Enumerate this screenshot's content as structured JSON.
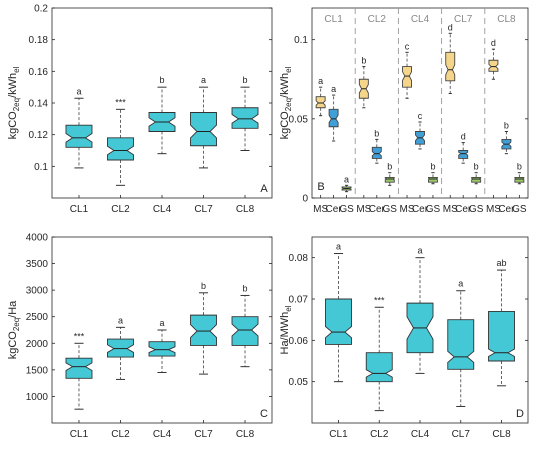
{
  "chart_data": [
    {
      "type": "box",
      "panel_label": "A",
      "ylabel": "kgCO2eq/kWhel",
      "ylabel_parts": {
        "base": "kgCO",
        "sub": "2eq",
        "mid": "/kWh",
        "sub2": "el"
      },
      "ylim": [
        0.08,
        0.2
      ],
      "yticks": [
        0.1,
        0.12,
        0.14,
        0.16,
        0.18,
        0.2
      ],
      "ytick_labels": [
        "0.1",
        "0.12",
        "0.14",
        "0.16",
        "0.18",
        "0.2"
      ],
      "categories": [
        "CL1",
        "CL2",
        "CL4",
        "CL7",
        "CL8"
      ],
      "boxes": [
        {
          "min": 0.099,
          "q1": 0.112,
          "median": 0.118,
          "q3": 0.126,
          "max": 0.143,
          "letter": "a"
        },
        {
          "min": 0.088,
          "q1": 0.104,
          "median": 0.11,
          "q3": 0.118,
          "max": 0.136,
          "letter": "***"
        },
        {
          "min": 0.108,
          "q1": 0.122,
          "median": 0.128,
          "q3": 0.134,
          "max": 0.15,
          "letter": "b"
        },
        {
          "min": 0.099,
          "q1": 0.113,
          "median": 0.122,
          "q3": 0.134,
          "max": 0.15,
          "letter": "a"
        },
        {
          "min": 0.11,
          "q1": 0.124,
          "median": 0.13,
          "q3": 0.137,
          "max": 0.15,
          "letter": "b"
        }
      ]
    },
    {
      "type": "box",
      "panel_label": "B",
      "ylabel": "kgCO2eq/kWhel",
      "ylabel_parts": {
        "base": "kgCO",
        "sub": "2eq",
        "mid": "/kWh",
        "sub2": "el"
      },
      "ylim": [
        0,
        0.12
      ],
      "yticks": [
        0,
        0.05,
        0.1
      ],
      "ytick_labels": [
        "0",
        "0.05",
        "0.1"
      ],
      "groups": [
        "CL1",
        "CL2",
        "CL4",
        "CL7",
        "CL8"
      ],
      "sub_categories": [
        "MS",
        "Cer",
        "GS"
      ],
      "colors": {
        "MS": "#f5d58a",
        "Cer": "#3f9fd6",
        "GS": "#9ccc65"
      },
      "boxes": [
        [
          {
            "min": 0.052,
            "q1": 0.057,
            "median": 0.06,
            "q3": 0.064,
            "max": 0.07,
            "letter": "a"
          },
          {
            "min": 0.036,
            "q1": 0.045,
            "median": 0.05,
            "q3": 0.056,
            "max": 0.065,
            "letter": "a"
          },
          {
            "min": 0.004,
            "q1": 0.005,
            "median": 0.006,
            "q3": 0.007,
            "max": 0.008,
            "letter": "a"
          }
        ],
        [
          {
            "min": 0.057,
            "q1": 0.063,
            "median": 0.069,
            "q3": 0.075,
            "max": 0.083,
            "letter": "b"
          },
          {
            "min": 0.022,
            "q1": 0.025,
            "median": 0.028,
            "q3": 0.032,
            "max": 0.037,
            "letter": "b"
          },
          {
            "min": 0.008,
            "q1": 0.01,
            "median": 0.012,
            "q3": 0.013,
            "max": 0.016,
            "letter": "b"
          }
        ],
        [
          {
            "min": 0.063,
            "q1": 0.07,
            "median": 0.077,
            "q3": 0.083,
            "max": 0.092,
            "letter": "c"
          },
          {
            "min": 0.031,
            "q1": 0.034,
            "median": 0.038,
            "q3": 0.042,
            "max": 0.048,
            "letter": "c"
          },
          {
            "min": 0.009,
            "q1": 0.01,
            "median": 0.012,
            "q3": 0.013,
            "max": 0.016,
            "letter": "b"
          }
        ],
        [
          {
            "min": 0.066,
            "q1": 0.074,
            "median": 0.081,
            "q3": 0.092,
            "max": 0.104,
            "letter": "d"
          },
          {
            "min": 0.022,
            "q1": 0.025,
            "median": 0.028,
            "q3": 0.03,
            "max": 0.035,
            "letter": "d"
          },
          {
            "min": 0.009,
            "q1": 0.01,
            "median": 0.012,
            "q3": 0.013,
            "max": 0.016,
            "letter": "b"
          }
        ],
        [
          {
            "min": 0.075,
            "q1": 0.08,
            "median": 0.083,
            "q3": 0.087,
            "max": 0.094,
            "letter": "d"
          },
          {
            "min": 0.028,
            "q1": 0.031,
            "median": 0.034,
            "q3": 0.037,
            "max": 0.042,
            "letter": "b"
          },
          {
            "min": 0.009,
            "q1": 0.01,
            "median": 0.012,
            "q3": 0.013,
            "max": 0.016,
            "letter": "b"
          }
        ]
      ]
    },
    {
      "type": "box",
      "panel_label": "C",
      "ylabel": "kgCO2eq/Ha",
      "ylabel_parts": {
        "base": "kgCO",
        "sub": "2eq",
        "mid": "/Ha",
        "sub2": ""
      },
      "ylim": [
        500,
        4000
      ],
      "yticks": [
        1000,
        1500,
        2000,
        2500,
        3000,
        3500,
        4000
      ],
      "ytick_labels": [
        "1000",
        "1500",
        "2000",
        "2500",
        "3000",
        "3500",
        "4000"
      ],
      "categories": [
        "CL1",
        "CL2",
        "CL4",
        "CL7",
        "CL8"
      ],
      "boxes": [
        {
          "min": 760,
          "q1": 1340,
          "median": 1560,
          "q3": 1720,
          "max": 2000,
          "letter": "***"
        },
        {
          "min": 1320,
          "q1": 1740,
          "median": 1900,
          "q3": 2080,
          "max": 2300,
          "letter": "a"
        },
        {
          "min": 1450,
          "q1": 1760,
          "median": 1880,
          "q3": 2030,
          "max": 2250,
          "letter": "a"
        },
        {
          "min": 1420,
          "q1": 1960,
          "median": 2230,
          "q3": 2530,
          "max": 2950,
          "letter": "b"
        },
        {
          "min": 1560,
          "q1": 1960,
          "median": 2250,
          "q3": 2500,
          "max": 2900,
          "letter": "b"
        }
      ]
    },
    {
      "type": "box",
      "panel_label": "D",
      "ylabel": "Ha/MWhel",
      "ylabel_parts": {
        "base": "Ha/MWh",
        "sub": "el",
        "mid": "",
        "sub2": ""
      },
      "ylim": [
        0.04,
        0.085
      ],
      "yticks": [
        0.05,
        0.06,
        0.07,
        0.08
      ],
      "ytick_labels": [
        "0.05",
        "0.06",
        "0.07",
        "0.08"
      ],
      "categories": [
        "CL1",
        "CL2",
        "CL4",
        "CL7",
        "CL8"
      ],
      "boxes": [
        {
          "min": 0.05,
          "q1": 0.059,
          "median": 0.062,
          "q3": 0.07,
          "max": 0.081,
          "letter": "a"
        },
        {
          "min": 0.043,
          "q1": 0.05,
          "median": 0.052,
          "q3": 0.057,
          "max": 0.068,
          "letter": "***"
        },
        {
          "min": 0.052,
          "q1": 0.057,
          "median": 0.063,
          "q3": 0.069,
          "max": 0.08,
          "letter": "a"
        },
        {
          "min": 0.044,
          "q1": 0.053,
          "median": 0.056,
          "q3": 0.065,
          "max": 0.072,
          "letter": "a"
        },
        {
          "min": 0.049,
          "q1": 0.055,
          "median": 0.057,
          "q3": 0.067,
          "max": 0.077,
          "letter": "ab"
        }
      ]
    }
  ],
  "box_color": "#45c8d6",
  "box_stroke": "#333333"
}
